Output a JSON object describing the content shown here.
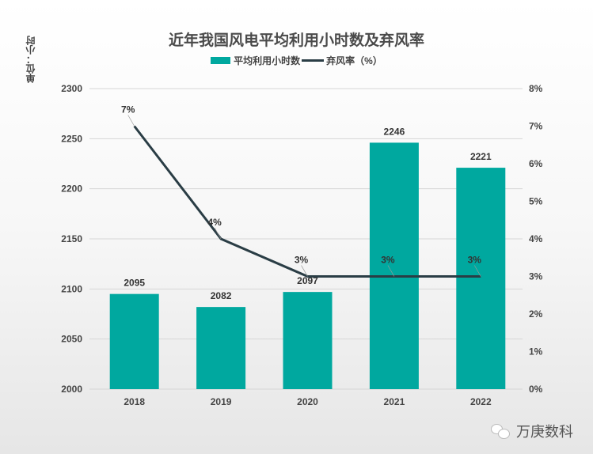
{
  "chart_data": {
    "type": "bar+line",
    "title": "近年我国风电平均利用小时数及弃风率",
    "y_unit_label": "单位：小时",
    "categories": [
      "2018",
      "2019",
      "2020",
      "2021",
      "2022"
    ],
    "series": [
      {
        "name": "平均利用小时数",
        "type": "bar",
        "axis": "left",
        "values": [
          2095,
          2082,
          2097,
          2246,
          2221
        ],
        "labels": [
          "2095",
          "2082",
          "2097",
          "2246",
          "2221"
        ],
        "color": "#00a89f"
      },
      {
        "name": "弃风率（%）",
        "type": "line",
        "axis": "right",
        "values": [
          7,
          4,
          3,
          3,
          3
        ],
        "labels": [
          "7%",
          "4%",
          "3%",
          "3%",
          "3%"
        ],
        "color": "#2a3d45"
      }
    ],
    "y_left": {
      "range": [
        2000,
        2300
      ],
      "ticks": [
        "2000",
        "2050",
        "2100",
        "2150",
        "2200",
        "2250",
        "2300"
      ]
    },
    "y_right": {
      "range": [
        0,
        8
      ],
      "ticks": [
        "0%",
        "1%",
        "2%",
        "3%",
        "4%",
        "5%",
        "6%",
        "7%",
        "8%"
      ]
    },
    "grid": true,
    "legend_position": "top"
  },
  "watermark": "万庚数科"
}
